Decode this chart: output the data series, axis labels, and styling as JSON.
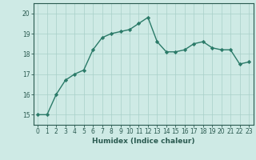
{
  "x": [
    0,
    1,
    2,
    3,
    4,
    5,
    6,
    7,
    8,
    9,
    10,
    11,
    12,
    13,
    14,
    15,
    16,
    17,
    18,
    19,
    20,
    21,
    22,
    23
  ],
  "y": [
    15.0,
    15.0,
    16.0,
    16.7,
    17.0,
    17.2,
    18.2,
    18.8,
    19.0,
    19.1,
    19.2,
    19.5,
    19.8,
    18.6,
    18.1,
    18.1,
    18.2,
    18.5,
    18.6,
    18.3,
    18.2,
    18.2,
    17.5,
    17.6
  ],
  "line_color": "#2a7a68",
  "marker": "D",
  "marker_size": 2.2,
  "line_width": 1.0,
  "bg_color": "#ceeae5",
  "grid_color": "#a8cfc9",
  "xlabel": "Humidex (Indice chaleur)",
  "xlim": [
    -0.5,
    23.5
  ],
  "ylim": [
    14.5,
    20.5
  ],
  "yticks": [
    15,
    16,
    17,
    18,
    19,
    20
  ],
  "xticks": [
    0,
    1,
    2,
    3,
    4,
    5,
    6,
    7,
    8,
    9,
    10,
    11,
    12,
    13,
    14,
    15,
    16,
    17,
    18,
    19,
    20,
    21,
    22,
    23
  ],
  "tick_fontsize": 5.5,
  "xlabel_fontsize": 6.5,
  "tick_color": "#2a5a50",
  "spine_color": "#2a5a50"
}
